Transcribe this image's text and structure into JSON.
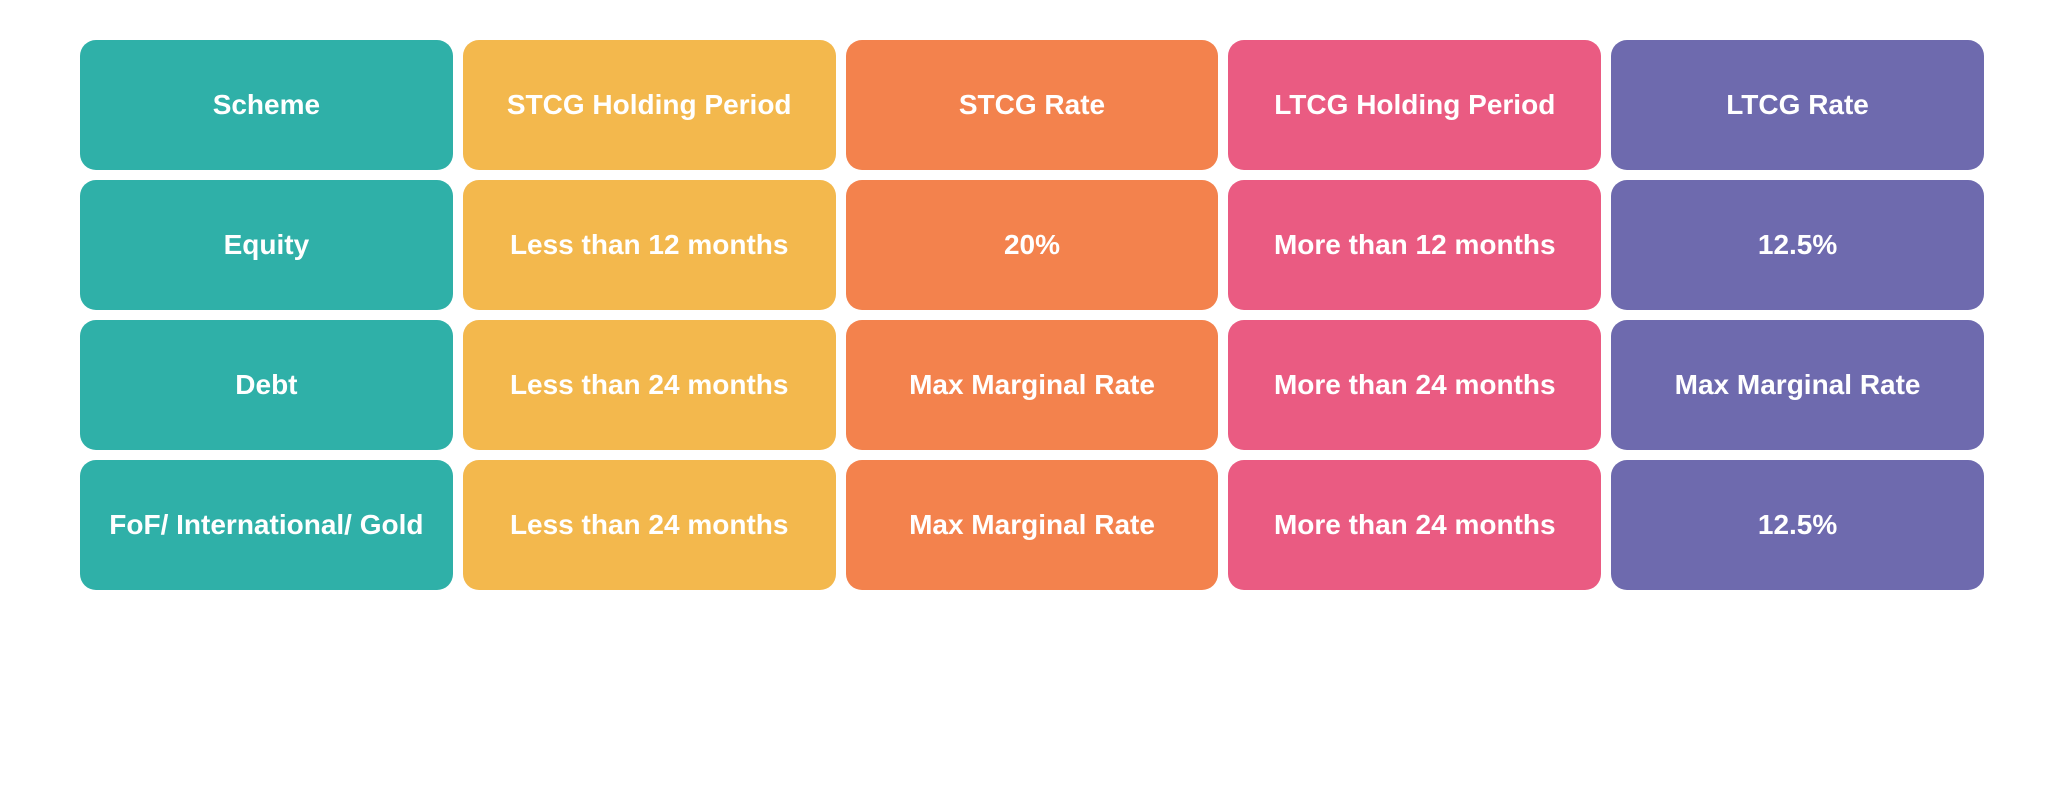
{
  "table": {
    "type": "table",
    "column_colors": [
      "#2fb0a8",
      "#f3b84d",
      "#f3824d",
      "#ea5b82",
      "#6e6aae"
    ],
    "text_color": "#ffffff",
    "background_color": "#ffffff",
    "cell_border_radius": 16,
    "cell_gap": 10,
    "font_weight": 700,
    "font_size": 28,
    "columns": [
      "Scheme",
      "STCG Holding Period",
      "STCG Rate",
      "LTCG Holding Period",
      "LTCG Rate"
    ],
    "rows": [
      [
        "Equity",
        "Less than 12 months",
        "20%",
        "More than 12 months",
        "12.5%"
      ],
      [
        "Debt",
        "Less than 24 months",
        "Max Marginal Rate",
        "More than 24 months",
        "Max Marginal Rate"
      ],
      [
        "FoF/ International/ Gold",
        "Less than 24 months",
        "Max Marginal Rate",
        "More than 24 months",
        "12.5%"
      ]
    ]
  }
}
